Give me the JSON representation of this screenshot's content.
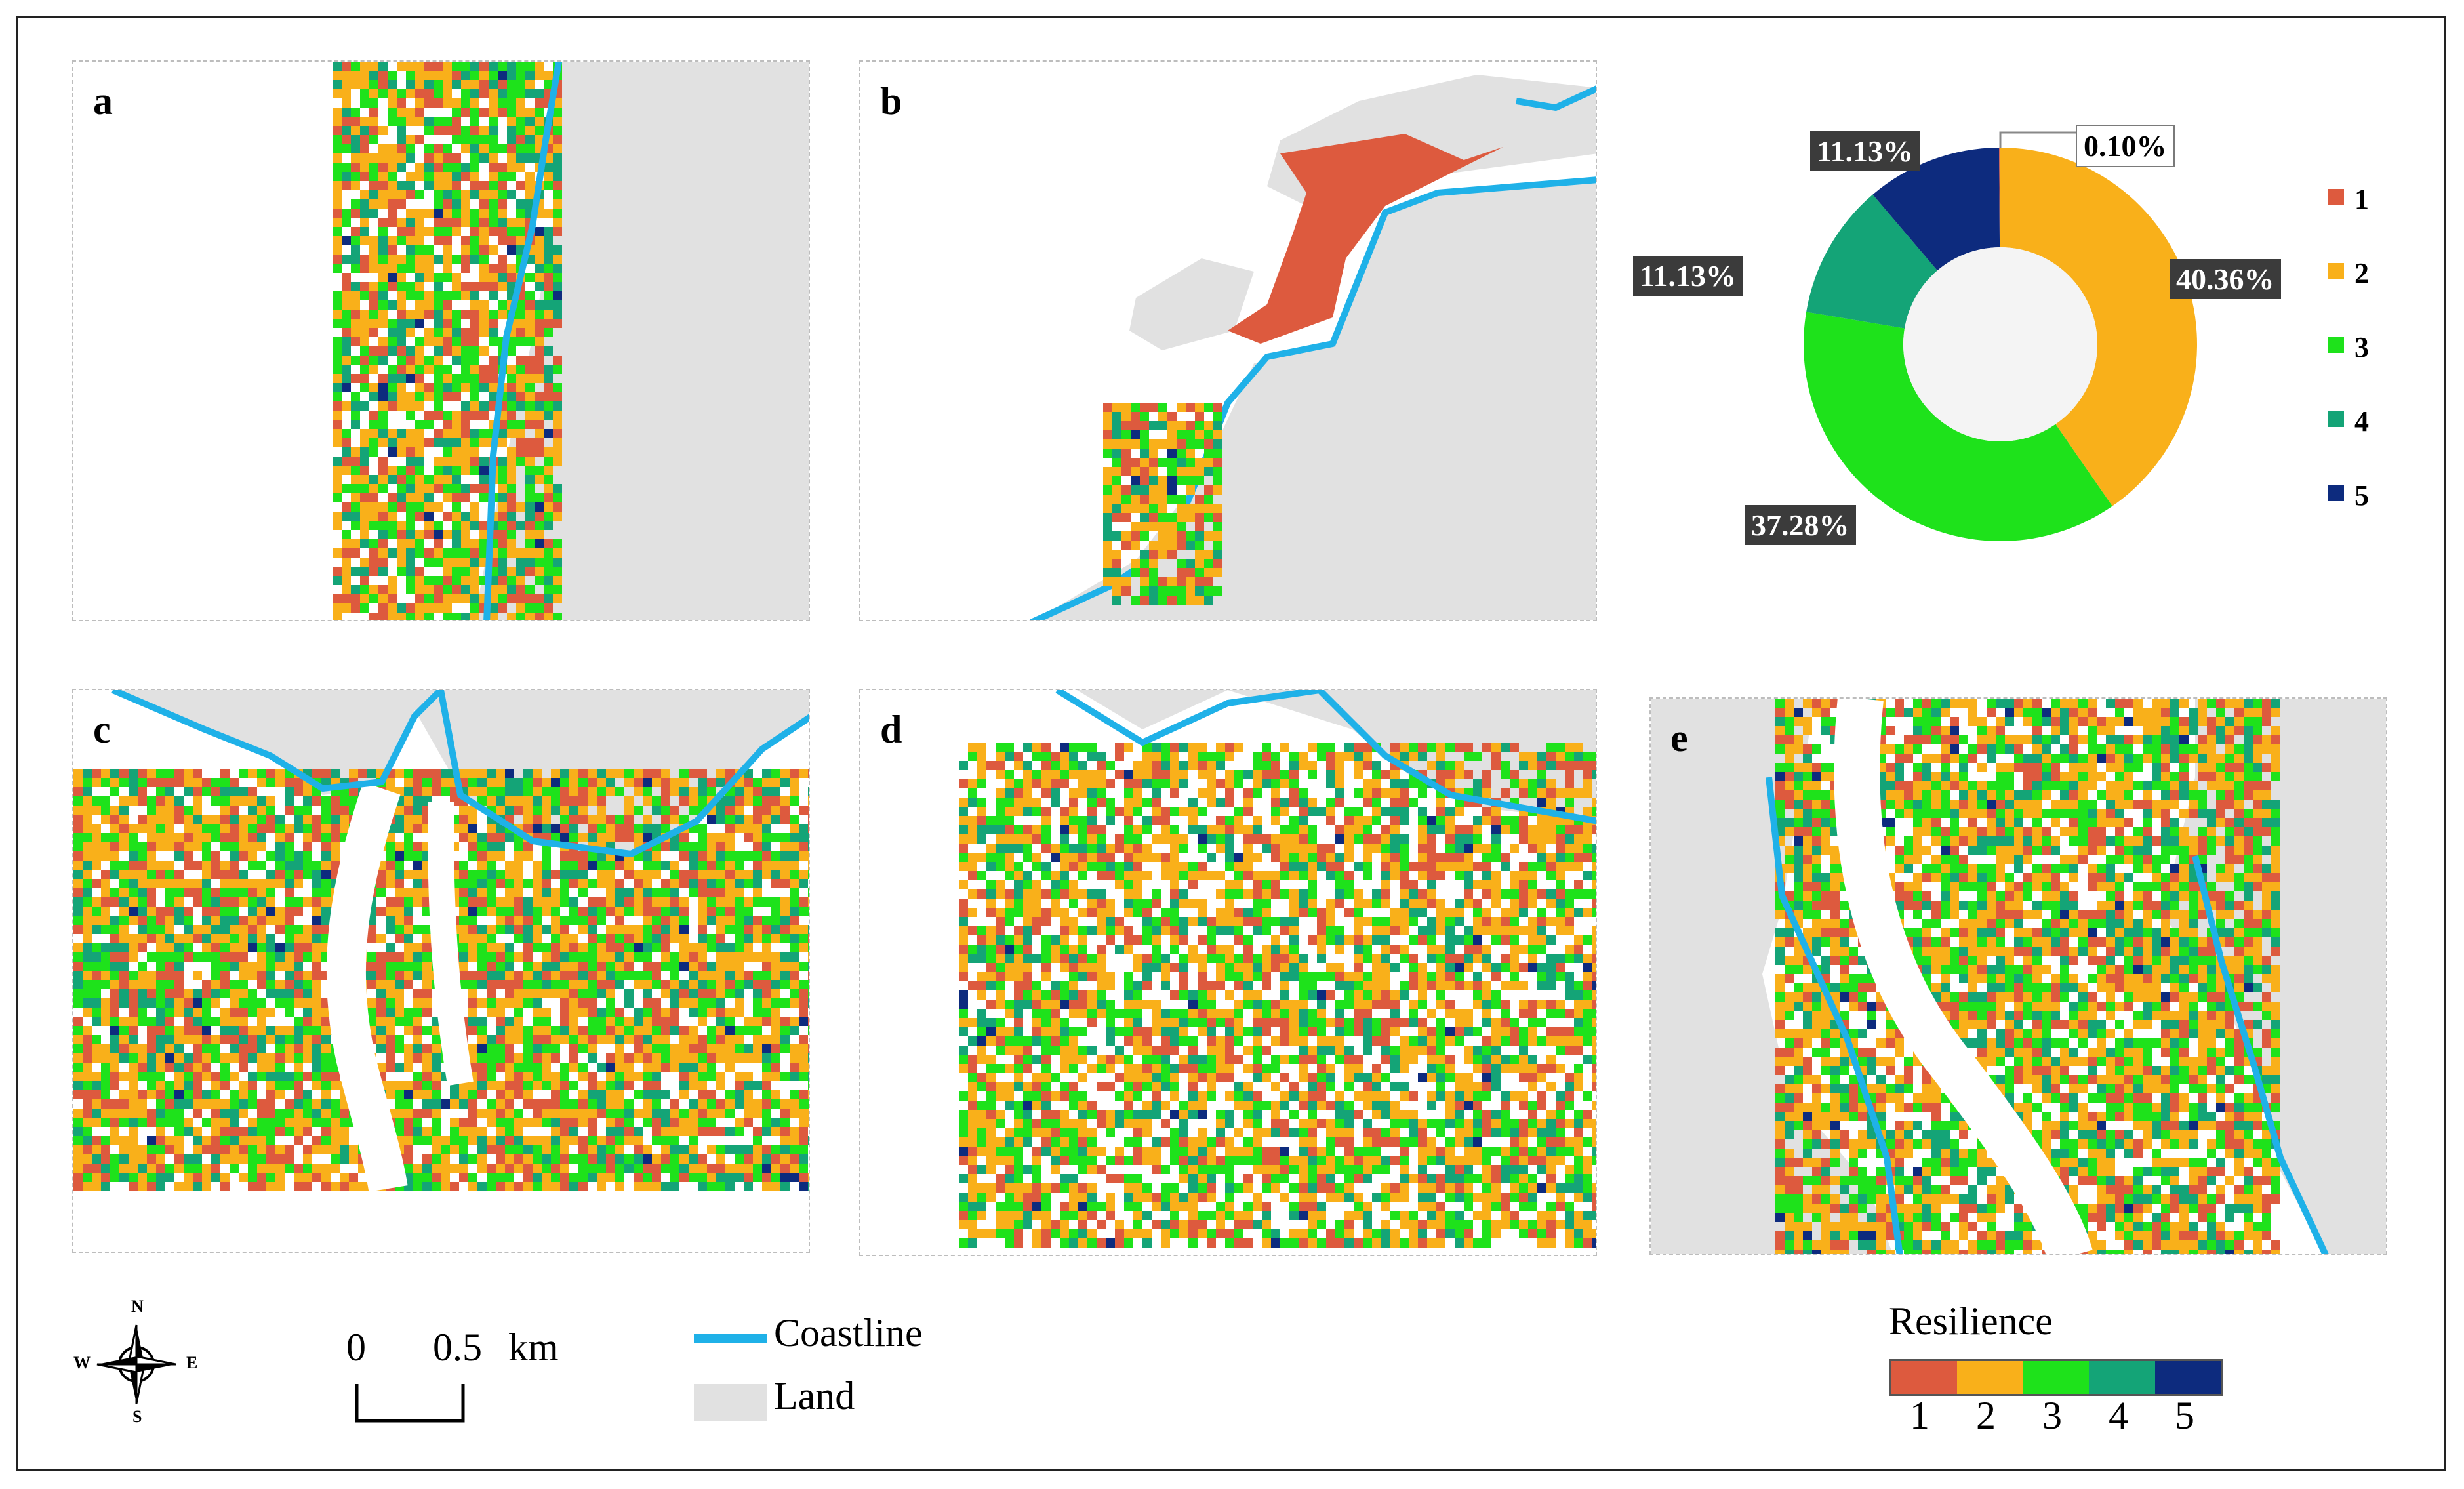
{
  "panels": [
    {
      "id": "a",
      "label": "a"
    },
    {
      "id": "b",
      "label": "b"
    },
    {
      "id": "c",
      "label": "c"
    },
    {
      "id": "d",
      "label": "d"
    },
    {
      "id": "e",
      "label": "e"
    }
  ],
  "classes": [
    {
      "label": "1",
      "color": "#dd5a3e"
    },
    {
      "label": "2",
      "color": "#f9b01a"
    },
    {
      "label": "3",
      "color": "#1ee21b"
    },
    {
      "label": "4",
      "color": "#14a477"
    },
    {
      "label": "5",
      "color": "#0d2b7e"
    }
  ],
  "chart_data": {
    "type": "pie",
    "style": "donut",
    "categories": [
      "1",
      "2",
      "3",
      "4",
      "5"
    ],
    "values": [
      0.1,
      40.36,
      37.28,
      11.13,
      11.13
    ],
    "value_labels": [
      "0.10%",
      "40.36%",
      "37.28%",
      "11.13%",
      "11.13%"
    ],
    "legend_position": "right"
  },
  "legend": {
    "coastline_label": "Coastline",
    "land_label": "Land",
    "coastline_color": "#1fb1e8",
    "land_color": "#e1e1e1",
    "resilience_title": "Resilience",
    "resilience_ticks": [
      "1",
      "2",
      "3",
      "4",
      "5"
    ]
  },
  "scalebar": {
    "zero": "0",
    "value": "0.5",
    "unit": "km"
  },
  "compass": {
    "n": "N",
    "s": "S",
    "e": "E",
    "w": "W"
  }
}
